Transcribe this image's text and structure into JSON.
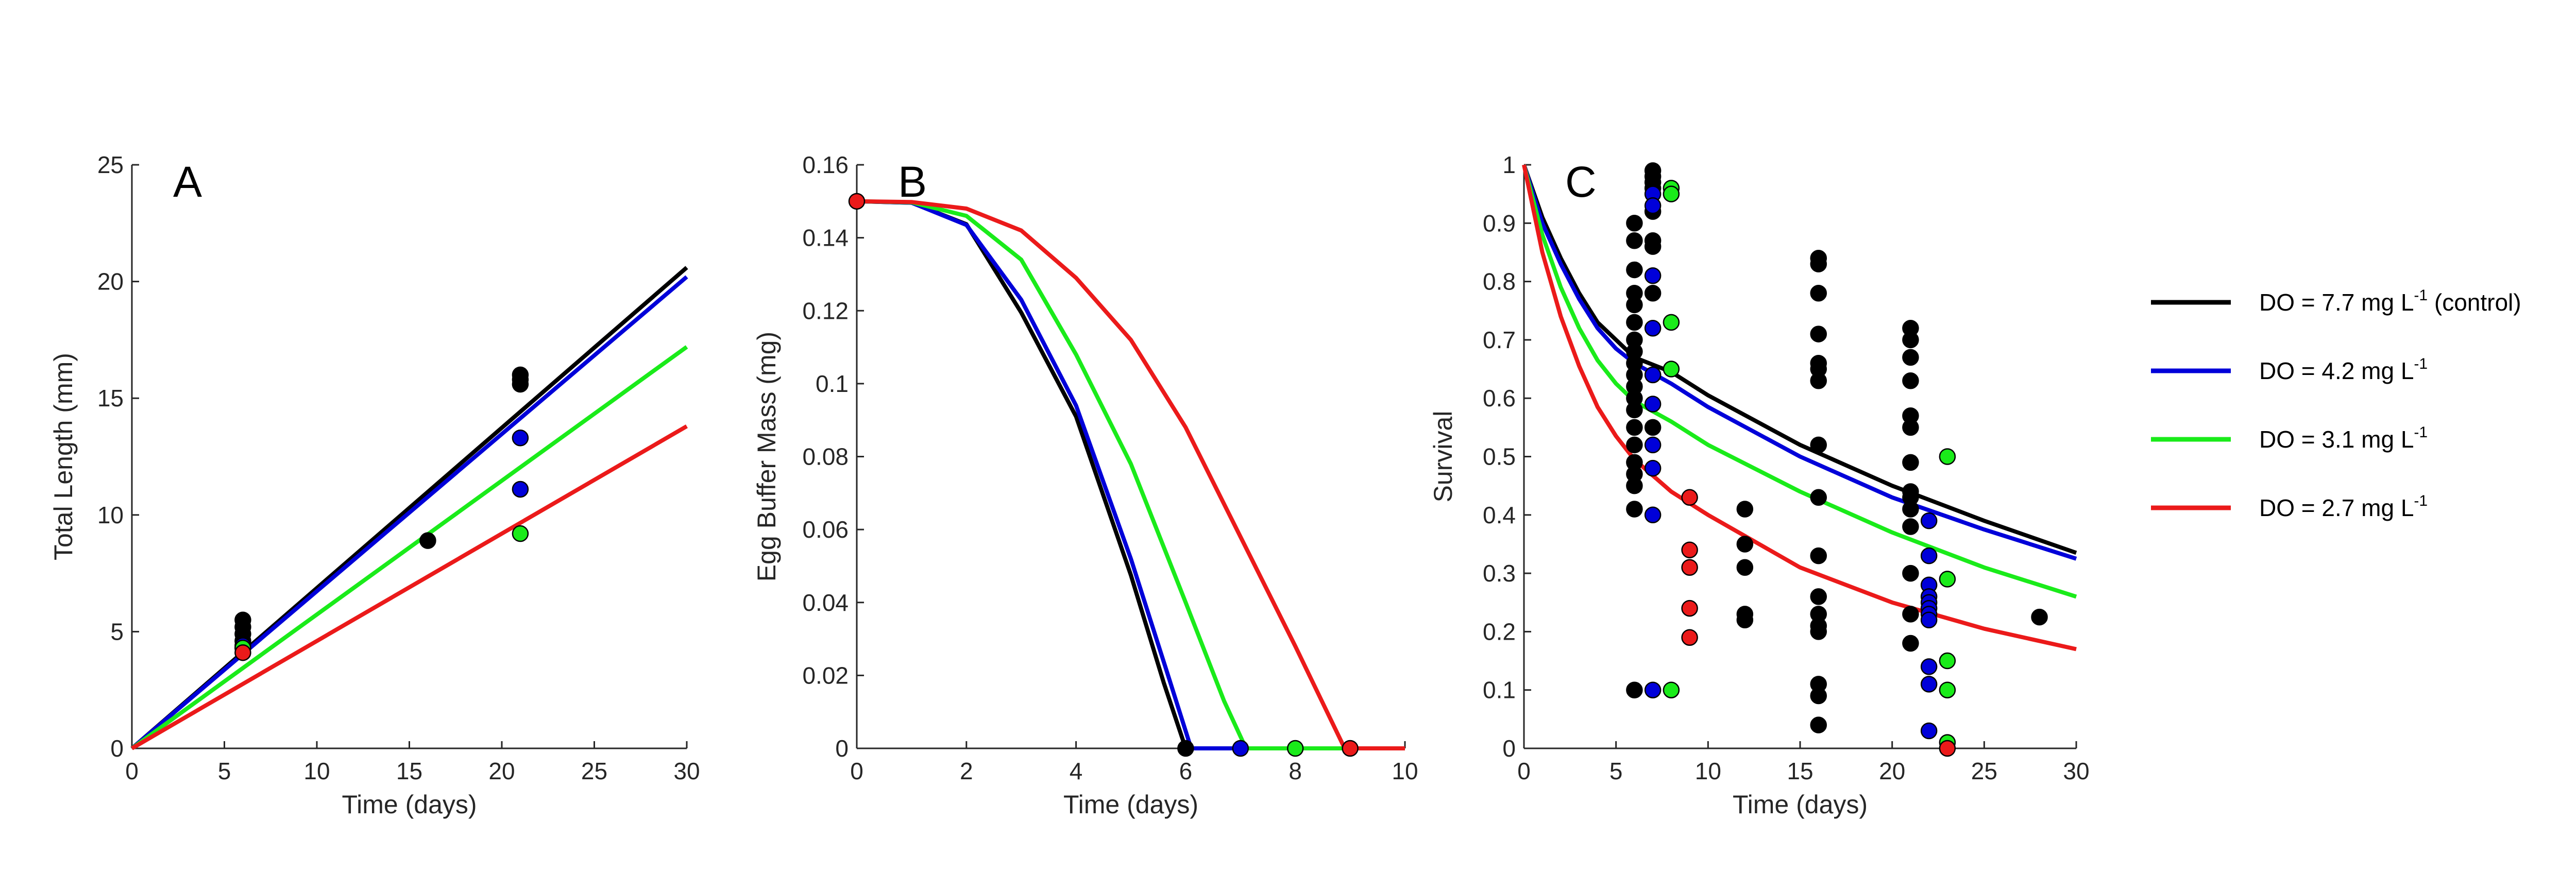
{
  "colors": {
    "black": "#000000",
    "blue": "#0000d9",
    "green": "#1aeb1a",
    "red": "#eb1a1a",
    "axis": "#262626"
  },
  "legend": {
    "placement": "right",
    "items": [
      {
        "color": "black",
        "prefix": "DO = 7.7 mg L",
        "sup": "-1",
        "suffix": " (control)"
      },
      {
        "color": "blue",
        "prefix": "DO = 4.2 mg L",
        "sup": "-1",
        "suffix": ""
      },
      {
        "color": "green",
        "prefix": "DO = 3.1 mg L",
        "sup": "-1",
        "suffix": ""
      },
      {
        "color": "red",
        "prefix": "DO = 2.7 mg L",
        "sup": "-1",
        "suffix": ""
      }
    ]
  },
  "chart_data": [
    {
      "type": "line",
      "letter": "A",
      "xlabel": "Time (days)",
      "ylabel": "Total Length (mm)",
      "xlim": [
        0,
        30
      ],
      "ylim": [
        0,
        25
      ],
      "xticks": [
        "0",
        "5",
        "10",
        "15",
        "20",
        "25",
        "30"
      ],
      "yticks": [
        "0",
        "5",
        "10",
        "15",
        "20",
        "25"
      ],
      "grid": false,
      "series": [
        {
          "color": "black",
          "line": [
            [
              0,
              0
            ],
            [
              30,
              20.6
            ]
          ],
          "points": [
            [
              6,
              5.5
            ],
            [
              6,
              5.2
            ],
            [
              6,
              4.9
            ],
            [
              6,
              4.6
            ],
            [
              6,
              4.3
            ],
            [
              16,
              8.9
            ],
            [
              21,
              16.0
            ],
            [
              21,
              15.8
            ],
            [
              21,
              15.6
            ]
          ]
        },
        {
          "color": "blue",
          "line": [
            [
              0,
              0
            ],
            [
              30,
              20.2
            ]
          ],
          "points": [
            [
              6,
              4.4
            ],
            [
              21,
              13.3
            ],
            [
              21,
              11.1
            ]
          ]
        },
        {
          "color": "green",
          "line": [
            [
              0,
              0
            ],
            [
              30,
              17.2
            ]
          ],
          "points": [
            [
              6,
              4.3
            ],
            [
              21,
              9.2
            ]
          ]
        },
        {
          "color": "red",
          "line": [
            [
              0,
              0
            ],
            [
              30,
              13.8
            ]
          ],
          "points": [
            [
              6,
              4.1
            ]
          ]
        }
      ]
    },
    {
      "type": "line",
      "letter": "B",
      "xlabel": "Time (days)",
      "ylabel": "Egg Buffer Mass (mg)",
      "xlim": [
        0,
        10
      ],
      "ylim": [
        0,
        0.16
      ],
      "xticks": [
        "0",
        "2",
        "4",
        "6",
        "8",
        "10"
      ],
      "yticks": [
        "0",
        "0.02",
        "0.04",
        "0.06",
        "0.08",
        "0.1",
        "0.12",
        "0.14",
        "0.16"
      ],
      "grid": false,
      "series": [
        {
          "color": "black",
          "line": [
            [
              0,
              0.15
            ],
            [
              1,
              0.1496
            ],
            [
              2,
              0.1437
            ],
            [
              3,
              0.1195
            ],
            [
              4,
              0.091
            ],
            [
              5,
              0.0475
            ],
            [
              5.6,
              0.018
            ],
            [
              6.0,
              0
            ],
            [
              10,
              0
            ]
          ],
          "points": [
            [
              6,
              0
            ]
          ]
        },
        {
          "color": "blue",
          "line": [
            [
              0,
              0.15
            ],
            [
              1,
              0.1496
            ],
            [
              2,
              0.1435
            ],
            [
              3,
              0.123
            ],
            [
              4,
              0.094
            ],
            [
              5,
              0.052
            ],
            [
              5.7,
              0.019
            ],
            [
              6.1,
              0
            ],
            [
              10,
              0
            ]
          ],
          "points": [
            [
              7,
              0
            ]
          ]
        },
        {
          "color": "green",
          "line": [
            [
              0,
              0.15
            ],
            [
              1,
              0.1497
            ],
            [
              2,
              0.146
            ],
            [
              3,
              0.134
            ],
            [
              4,
              0.108
            ],
            [
              5,
              0.078
            ],
            [
              6,
              0.04
            ],
            [
              6.7,
              0.013
            ],
            [
              7.1,
              0
            ],
            [
              10,
              0
            ]
          ],
          "points": [
            [
              8,
              0
            ]
          ]
        },
        {
          "color": "red",
          "line": [
            [
              0,
              0.15
            ],
            [
              1,
              0.1498
            ],
            [
              2,
              0.148
            ],
            [
              3,
              0.142
            ],
            [
              4,
              0.129
            ],
            [
              5,
              0.112
            ],
            [
              6,
              0.088
            ],
            [
              7,
              0.058
            ],
            [
              8,
              0.028
            ],
            [
              8.9,
              0
            ],
            [
              10,
              0
            ]
          ],
          "points": [
            [
              0,
              0.15
            ],
            [
              9,
              0
            ]
          ]
        }
      ]
    },
    {
      "type": "line",
      "letter": "C",
      "xlabel": "Time (days)",
      "ylabel": "Survival",
      "xlim": [
        0,
        30
      ],
      "ylim": [
        0,
        1
      ],
      "xticks": [
        "0",
        "5",
        "10",
        "15",
        "20",
        "25",
        "30"
      ],
      "yticks": [
        "0",
        "0.1",
        "0.2",
        "0.3",
        "0.4",
        "0.5",
        "0.6",
        "0.7",
        "0.8",
        "0.9",
        "1"
      ],
      "grid": false,
      "series": [
        {
          "color": "black",
          "line": [
            [
              0,
              1
            ],
            [
              1,
              0.91
            ],
            [
              2,
              0.84
            ],
            [
              3,
              0.78
            ],
            [
              4,
              0.73
            ],
            [
              5,
              0.7
            ],
            [
              6,
              0.67
            ],
            [
              8,
              0.645
            ],
            [
              10,
              0.605
            ],
            [
              15,
              0.52
            ],
            [
              20,
              0.45
            ],
            [
              25,
              0.39
            ],
            [
              30,
              0.335
            ]
          ],
          "points": [
            [
              6,
              0.9
            ],
            [
              6,
              0.87
            ],
            [
              6,
              0.82
            ],
            [
              6,
              0.78
            ],
            [
              6,
              0.76
            ],
            [
              6,
              0.73
            ],
            [
              6,
              0.7
            ],
            [
              6,
              0.68
            ],
            [
              6,
              0.66
            ],
            [
              6,
              0.64
            ],
            [
              6,
              0.62
            ],
            [
              6,
              0.6
            ],
            [
              6,
              0.58
            ],
            [
              6,
              0.55
            ],
            [
              6,
              0.52
            ],
            [
              6,
              0.49
            ],
            [
              6,
              0.47
            ],
            [
              6,
              0.45
            ],
            [
              6,
              0.41
            ],
            [
              6,
              0.1
            ],
            [
              7,
              0.99
            ],
            [
              7,
              0.98
            ],
            [
              7,
              0.97
            ],
            [
              7,
              0.96
            ],
            [
              7,
              0.92
            ],
            [
              7,
              0.87
            ],
            [
              7,
              0.86
            ],
            [
              7,
              0.78
            ],
            [
              7,
              0.64
            ],
            [
              7,
              0.55
            ],
            [
              12,
              0.41
            ],
            [
              12,
              0.35
            ],
            [
              12,
              0.31
            ],
            [
              12,
              0.23
            ],
            [
              12,
              0.22
            ],
            [
              16,
              0.84
            ],
            [
              16,
              0.83
            ],
            [
              16,
              0.78
            ],
            [
              16,
              0.71
            ],
            [
              16,
              0.66
            ],
            [
              16,
              0.65
            ],
            [
              16,
              0.63
            ],
            [
              16,
              0.52
            ],
            [
              16,
              0.43
            ],
            [
              16,
              0.33
            ],
            [
              16,
              0.26
            ],
            [
              16,
              0.23
            ],
            [
              16,
              0.21
            ],
            [
              16,
              0.2
            ],
            [
              16,
              0.11
            ],
            [
              16,
              0.09
            ],
            [
              16,
              0.04
            ],
            [
              21,
              0.72
            ],
            [
              21,
              0.7
            ],
            [
              21,
              0.67
            ],
            [
              21,
              0.63
            ],
            [
              21,
              0.57
            ],
            [
              21,
              0.55
            ],
            [
              21,
              0.49
            ],
            [
              21,
              0.44
            ],
            [
              21,
              0.43
            ],
            [
              21,
              0.41
            ],
            [
              21,
              0.38
            ],
            [
              21,
              0.3
            ],
            [
              21,
              0.23
            ],
            [
              21,
              0.18
            ],
            [
              28,
              0.225
            ]
          ]
        },
        {
          "color": "blue",
          "line": [
            [
              0,
              1
            ],
            [
              1,
              0.9
            ],
            [
              2,
              0.83
            ],
            [
              3,
              0.77
            ],
            [
              4,
              0.72
            ],
            [
              5,
              0.685
            ],
            [
              6,
              0.66
            ],
            [
              8,
              0.625
            ],
            [
              10,
              0.585
            ],
            [
              15,
              0.5
            ],
            [
              20,
              0.43
            ],
            [
              25,
              0.375
            ],
            [
              30,
              0.325
            ]
          ],
          "points": [
            [
              7,
              0.95
            ],
            [
              7,
              0.93
            ],
            [
              7,
              0.81
            ],
            [
              7,
              0.72
            ],
            [
              7,
              0.64
            ],
            [
              7,
              0.59
            ],
            [
              7,
              0.52
            ],
            [
              7,
              0.48
            ],
            [
              7,
              0.4
            ],
            [
              7,
              0.1
            ],
            [
              22,
              0.39
            ],
            [
              22,
              0.33
            ],
            [
              22,
              0.28
            ],
            [
              22,
              0.26
            ],
            [
              22,
              0.25
            ],
            [
              22,
              0.24
            ],
            [
              22,
              0.23
            ],
            [
              22,
              0.22
            ],
            [
              22,
              0.14
            ],
            [
              22,
              0.11
            ],
            [
              22,
              0.03
            ]
          ]
        },
        {
          "color": "green",
          "line": [
            [
              0,
              1
            ],
            [
              1,
              0.88
            ],
            [
              2,
              0.79
            ],
            [
              3,
              0.72
            ],
            [
              4,
              0.665
            ],
            [
              5,
              0.625
            ],
            [
              6,
              0.595
            ],
            [
              8,
              0.56
            ],
            [
              10,
              0.52
            ],
            [
              15,
              0.44
            ],
            [
              20,
              0.37
            ],
            [
              25,
              0.31
            ],
            [
              30,
              0.26
            ]
          ],
          "points": [
            [
              8,
              0.96
            ],
            [
              8,
              0.95
            ],
            [
              8,
              0.73
            ],
            [
              8,
              0.65
            ],
            [
              8,
              0.1
            ],
            [
              23,
              0.5
            ],
            [
              23,
              0.29
            ],
            [
              23,
              0.15
            ],
            [
              23,
              0.1
            ],
            [
              23,
              0.01
            ]
          ]
        },
        {
          "color": "red",
          "line": [
            [
              0,
              1
            ],
            [
              1,
              0.85
            ],
            [
              2,
              0.74
            ],
            [
              3,
              0.655
            ],
            [
              4,
              0.585
            ],
            [
              5,
              0.535
            ],
            [
              6,
              0.495
            ],
            [
              8,
              0.44
            ],
            [
              10,
              0.4
            ],
            [
              15,
              0.31
            ],
            [
              20,
              0.25
            ],
            [
              25,
              0.205
            ],
            [
              30,
              0.17
            ]
          ],
          "points": [
            [
              9,
              0.43
            ],
            [
              9,
              0.34
            ],
            [
              9,
              0.31
            ],
            [
              9,
              0.24
            ],
            [
              9,
              0.19
            ],
            [
              23,
              0.0
            ]
          ]
        }
      ]
    }
  ]
}
